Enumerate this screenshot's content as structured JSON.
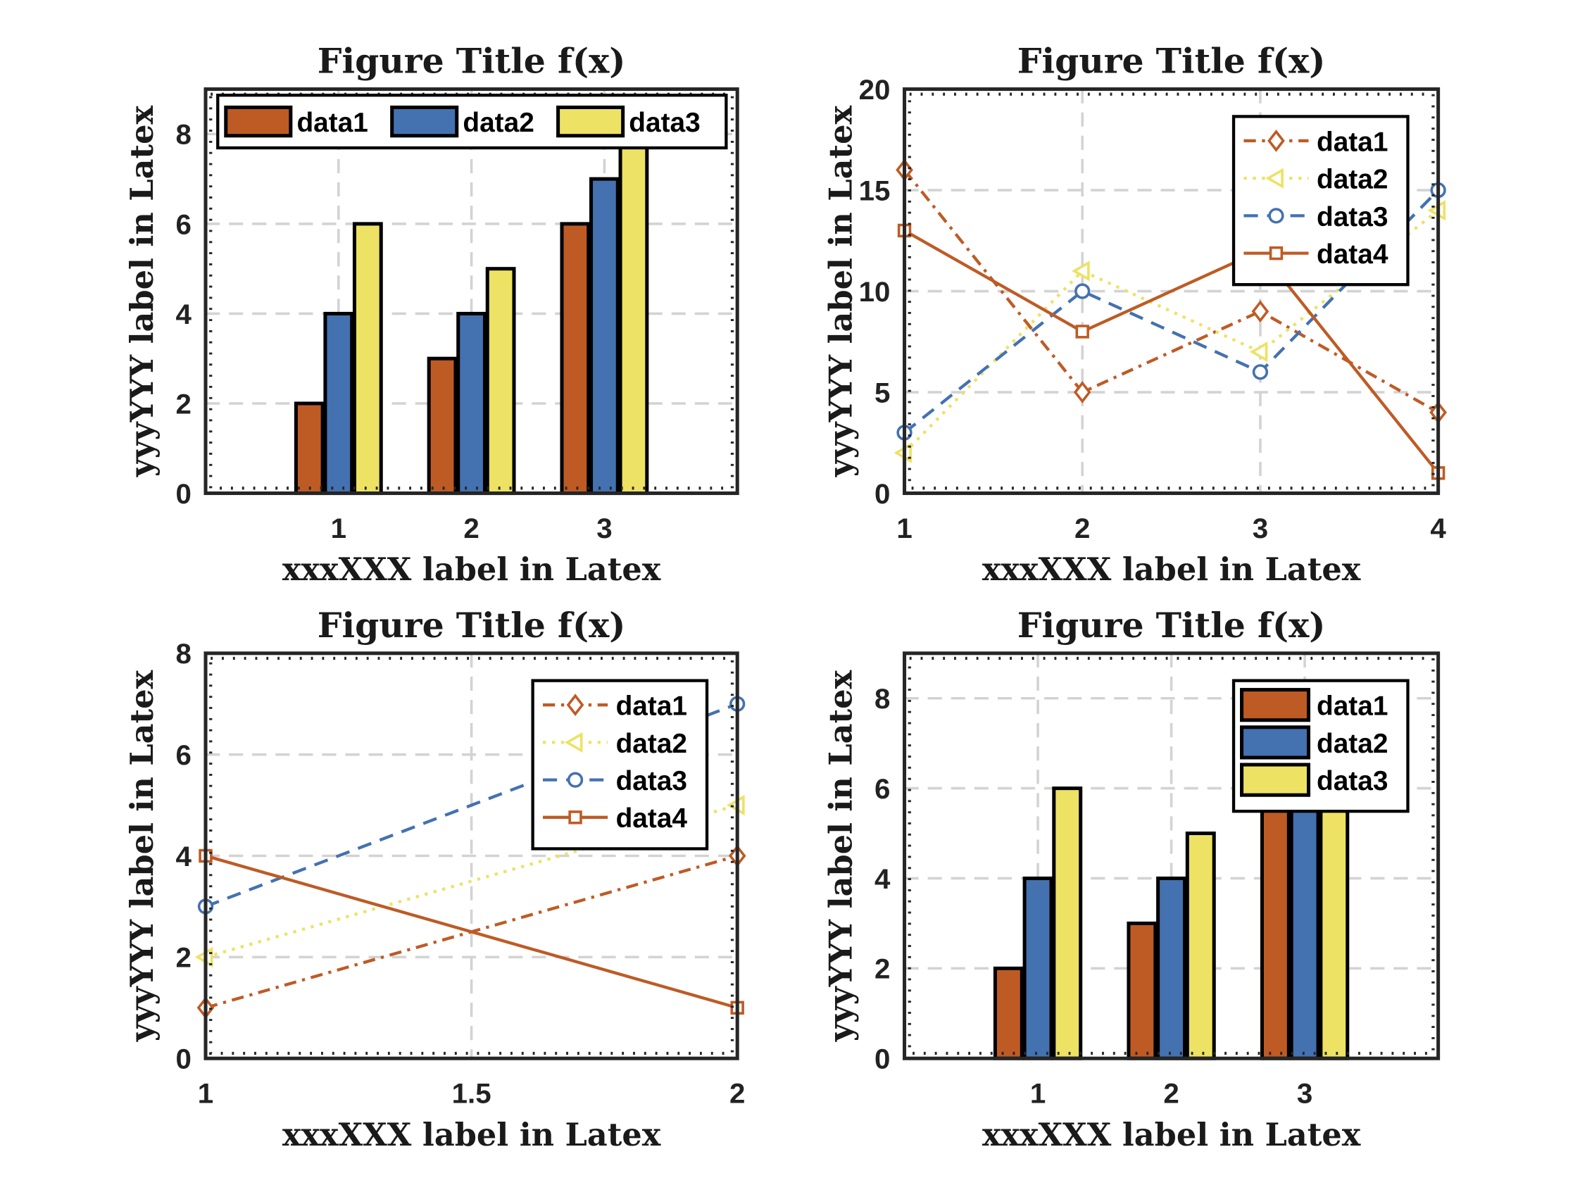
{
  "colors": {
    "data1": "#BE5B25",
    "data2": "#EDE264",
    "data3": "#4471B0",
    "data4": "#BE5B25",
    "bar1": "#BE5B25",
    "bar2": "#4471B0",
    "bar3": "#EDE264",
    "grid": "#D3D3D3",
    "axis": "#262626"
  },
  "chart_data": [
    {
      "type": "bar",
      "title": "Figure Title f(x)",
      "xlabel": "xxxXXX label in Latex",
      "ylabel": "yyyYYY label in Latex",
      "categories": [
        "1",
        "2",
        "3"
      ],
      "xlim": [
        0,
        4
      ],
      "ylim": [
        0,
        9
      ],
      "xticks": [
        1,
        2,
        3
      ],
      "yticks": [
        0,
        2,
        4,
        6,
        8
      ],
      "grid": true,
      "legend": "top",
      "legend_orientation": "horizontal",
      "series": [
        {
          "name": "data1",
          "values": [
            2,
            3,
            6
          ]
        },
        {
          "name": "data2",
          "values": [
            4,
            4,
            7
          ]
        },
        {
          "name": "data3",
          "values": [
            6,
            5,
            8
          ]
        }
      ]
    },
    {
      "type": "line",
      "title": "Figure Title f(x)",
      "xlabel": "xxxXXX label in Latex",
      "ylabel": "yyyYYY label in Latex",
      "x": [
        1,
        2,
        3,
        4
      ],
      "xlim": [
        1,
        4
      ],
      "ylim": [
        0,
        20
      ],
      "xticks": [
        1,
        2,
        3,
        4
      ],
      "yticks": [
        0,
        5,
        10,
        15,
        20
      ],
      "grid": true,
      "legend": "top-right",
      "series": [
        {
          "name": "data1",
          "values": [
            16,
            5,
            9,
            4
          ],
          "line": "dash-dot",
          "marker": "diamond"
        },
        {
          "name": "data2",
          "values": [
            2,
            11,
            7,
            14
          ],
          "line": "dotted",
          "marker": "triangle-left"
        },
        {
          "name": "data3",
          "values": [
            3,
            10,
            6,
            15
          ],
          "line": "dashed",
          "marker": "circle"
        },
        {
          "name": "data4",
          "values": [
            13,
            8,
            12,
            1
          ],
          "line": "solid",
          "marker": "square"
        }
      ]
    },
    {
      "type": "line",
      "title": "Figure Title f(x)",
      "xlabel": "xxxXXX label in Latex",
      "ylabel": "yyyYYY label in Latex",
      "x": [
        1,
        2
      ],
      "xlim": [
        1,
        2
      ],
      "ylim": [
        0,
        8
      ],
      "xticks": [
        1,
        1.5,
        2
      ],
      "yticks": [
        0,
        2,
        4,
        6,
        8
      ],
      "grid": true,
      "legend": "top-right",
      "series": [
        {
          "name": "data1",
          "values": [
            1,
            4
          ],
          "line": "dash-dot",
          "marker": "diamond"
        },
        {
          "name": "data2",
          "values": [
            2,
            5
          ],
          "line": "dotted",
          "marker": "triangle-left"
        },
        {
          "name": "data3",
          "values": [
            3,
            7
          ],
          "line": "dashed",
          "marker": "circle"
        },
        {
          "name": "data4",
          "values": [
            4,
            1
          ],
          "line": "solid",
          "marker": "square"
        }
      ]
    },
    {
      "type": "bar",
      "title": "Figure Title f(x)",
      "xlabel": "xxxXXX label in Latex",
      "ylabel": "yyyYYY label in Latex",
      "categories": [
        "1",
        "2",
        "3"
      ],
      "xlim": [
        0,
        4
      ],
      "ylim": [
        0,
        9
      ],
      "xticks": [
        1,
        2,
        3
      ],
      "yticks": [
        0,
        2,
        4,
        6,
        8
      ],
      "grid": true,
      "legend": "top-right",
      "legend_orientation": "vertical",
      "series": [
        {
          "name": "data1",
          "values": [
            2,
            3,
            6
          ]
        },
        {
          "name": "data2",
          "values": [
            4,
            4,
            7
          ]
        },
        {
          "name": "data3",
          "values": [
            6,
            5,
            8
          ]
        }
      ]
    }
  ]
}
